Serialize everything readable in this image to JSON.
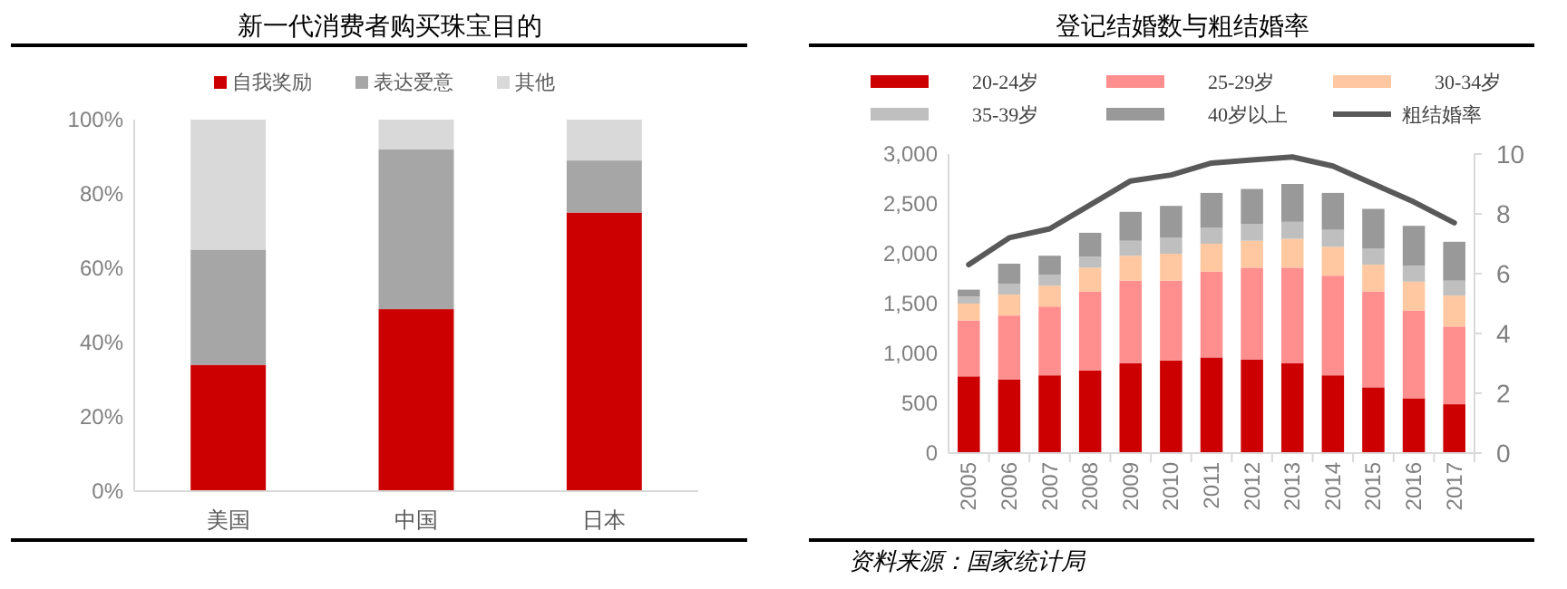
{
  "chart_data": [
    {
      "type": "bar",
      "title": "新一代消费者购买珠宝目的",
      "stacked": true,
      "categories": [
        "美国",
        "中国",
        "日本"
      ],
      "series": [
        {
          "name": "自我奖励",
          "color": "#cc0000",
          "values": [
            34,
            49,
            75
          ]
        },
        {
          "name": "表达爱意",
          "color": "#a6a6a6",
          "values": [
            31,
            43,
            14
          ]
        },
        {
          "name": "其他",
          "color": "#d9d9d9",
          "values": [
            35,
            8,
            11
          ]
        }
      ],
      "ylim": [
        0,
        100
      ],
      "yticks": [
        {
          "value": 0,
          "label": "0%"
        },
        {
          "value": 20,
          "label": "20%"
        },
        {
          "value": 40,
          "label": "40%"
        },
        {
          "value": 60,
          "label": "60%"
        },
        {
          "value": 80,
          "label": "80%"
        },
        {
          "value": 100,
          "label": "100%"
        }
      ],
      "legend": "top",
      "grid": false
    },
    {
      "type": "bar",
      "title": "登记结婚数与粗结婚率",
      "stacked": true,
      "categories": [
        "2005",
        "2006",
        "2007",
        "2008",
        "2009",
        "2010",
        "2011",
        "2012",
        "2013",
        "2014",
        "2015",
        "2016",
        "2017"
      ],
      "series": [
        {
          "name": "20-24岁",
          "color": "#cc0000",
          "values": [
            770,
            740,
            780,
            830,
            900,
            930,
            960,
            940,
            900,
            780,
            660,
            550,
            490
          ]
        },
        {
          "name": "25-29岁",
          "color": "#ff8f8f",
          "values": [
            560,
            640,
            690,
            790,
            830,
            800,
            860,
            920,
            960,
            1000,
            960,
            880,
            780
          ]
        },
        {
          "name": "30-34岁",
          "color": "#ffc8a0",
          "values": [
            170,
            210,
            210,
            240,
            250,
            270,
            280,
            270,
            290,
            290,
            270,
            290,
            310
          ]
        },
        {
          "name": "35-39岁",
          "color": "#bfbfbf",
          "values": [
            70,
            110,
            110,
            110,
            150,
            160,
            160,
            170,
            170,
            170,
            160,
            160,
            150
          ]
        },
        {
          "name": "40岁以上",
          "color": "#999999",
          "values": [
            70,
            200,
            190,
            240,
            290,
            320,
            350,
            350,
            380,
            370,
            400,
            400,
            390
          ]
        },
        {
          "name": "粗结婚率",
          "type": "line",
          "axis": "y2",
          "color": "#595959",
          "values": [
            6.3,
            7.2,
            7.5,
            8.3,
            9.1,
            9.3,
            9.7,
            9.8,
            9.9,
            9.6,
            9.0,
            8.4,
            7.7
          ]
        }
      ],
      "ylim": [
        0,
        3000
      ],
      "yticks": [
        0,
        500,
        {
          "value": 1000,
          "label": "1,000"
        },
        {
          "value": 1500,
          "label": "1,500"
        },
        {
          "value": 2000,
          "label": "2,000"
        },
        {
          "value": 2500,
          "label": "2,500"
        },
        {
          "value": 3000,
          "label": "3,000"
        }
      ],
      "y2lim": [
        0,
        10
      ],
      "y2ticks": [
        0,
        2,
        4,
        6,
        8,
        10
      ],
      "legend": "top",
      "grid": false,
      "annotations": [
        "资料来源：国家统计局"
      ]
    }
  ]
}
